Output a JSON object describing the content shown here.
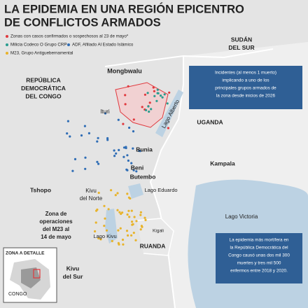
{
  "header": {
    "title": [
      "LA EPIDEMIA EN UNA REGIÓN EPICENTRO",
      "DE CONFLICTOS ARMADOS"
    ]
  },
  "legend": [
    {
      "label": "Zonas con casos confirmados o sospechosos al 23 de mayo*",
      "color": "#e0393e"
    },
    {
      "label": "Milicia Codeco O Grupo CRP",
      "color": "#2a9d8f"
    },
    {
      "label": "ADF, Afiliado Al Estado Islámico",
      "color": "#2f6db5"
    },
    {
      "label": "M23, Grupo Antiguebernamental",
      "color": "#e8b32a"
    }
  ],
  "map_labels": [
    [
      "SUDÁN",
      "DEL SUR"
    ],
    [
      "REPÚBLICA",
      "DEMOCRÁTICA",
      "DEL CONGO"
    ],
    [
      "Mongbwalu"
    ],
    [
      "Ituri"
    ],
    [
      "Lago Alberto"
    ],
    [
      "UGANDA"
    ],
    [
      "Bunia"
    ],
    [
      "Beni"
    ],
    [
      "Butembo"
    ],
    [
      "Kampala"
    ],
    [
      "Tshopo"
    ],
    [
      "Kivu",
      "del Norte"
    ],
    [
      "Lago Eduardo"
    ],
    [
      "Zona de",
      "operaciones",
      "del M23 al",
      "14 de mayo"
    ],
    [
      "Lago Kivu"
    ],
    [
      "Kigali"
    ],
    [
      "RUANDA"
    ],
    [
      "Lago Victoria"
    ],
    [
      "Kivu",
      "del Sur"
    ]
  ],
  "inset": {
    "title": "ZONA A DETALLE",
    "label": "CONGO"
  },
  "notes": [
    [
      "Incidentes (al menos 1 muerto)",
      "implicando a uno de los",
      "principales grupos armados de",
      "la zona desde inicios de 2026"
    ],
    [
      "La epidemia más mortífera en",
      "la República Democrática del",
      "Congo causó unas dos mil 300",
      "muertes y tres mil 500",
      "enfermos entre 2018 y 2020."
    ]
  ]
}
